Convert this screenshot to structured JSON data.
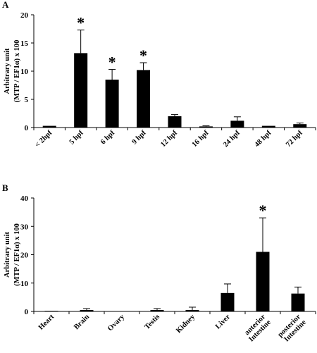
{
  "chart_data": [
    {
      "type": "bar",
      "panel_label": "A",
      "ylabel_line1": "Arbitrary unit",
      "ylabel_line2": "(MTP / EF1α) x 100",
      "ylim": [
        0,
        20
      ],
      "yticks": [
        "0",
        "5",
        "10",
        "15",
        "20"
      ],
      "ytick_values": [
        0,
        5,
        10,
        15,
        20
      ],
      "categories": [
        "< 2hpf",
        "5 hpf",
        "6 hpf",
        "9 hpf",
        "12 hpf",
        "16 hpf",
        "24 hpf",
        "48 hpf",
        "72 hpf"
      ],
      "values": [
        0.3,
        13.2,
        8.5,
        10.2,
        2.0,
        0.2,
        1.2,
        0.3,
        0.6
      ],
      "errors": [
        0,
        4.1,
        1.8,
        1.3,
        0.3,
        0.1,
        0.7,
        0,
        0.2
      ],
      "significance": [
        "",
        "*",
        "*",
        "*",
        "",
        "",
        "",
        "",
        ""
      ],
      "grid": false,
      "legend": "none"
    },
    {
      "type": "bar",
      "panel_label": "B",
      "ylabel_line1": "Arbitrary unit",
      "ylabel_line2": "(MTP / EF1α) x 100",
      "ylim": [
        0,
        40
      ],
      "yticks": [
        "0",
        "10",
        "20",
        "30",
        "40"
      ],
      "ytick_values": [
        0,
        10,
        20,
        30,
        40
      ],
      "categories": [
        "Heart",
        "Brain",
        "Ovary",
        "Testis",
        "Kidney",
        "Liver",
        "anterior Intestine",
        "posterior Intestine"
      ],
      "category_lines": [
        [
          "Heart"
        ],
        [
          "Brain"
        ],
        [
          "Ovary"
        ],
        [
          "Testis"
        ],
        [
          "Kidney"
        ],
        [
          "Liver"
        ],
        [
          "anterior",
          "Intestine"
        ],
        [
          "posterior",
          "Intestine"
        ]
      ],
      "values": [
        0.2,
        0.5,
        0.0,
        0.5,
        0.5,
        6.5,
        21.0,
        6.3
      ],
      "errors": [
        0,
        0.5,
        0,
        0.5,
        1.0,
        3.2,
        12.0,
        2.3
      ],
      "significance": [
        "",
        "",
        "",
        "",
        "",
        "",
        "*",
        ""
      ],
      "grid": false,
      "legend": "none"
    }
  ],
  "colors": {
    "bar": "#000000",
    "axis": "#000000",
    "background": "#ffffff"
  }
}
